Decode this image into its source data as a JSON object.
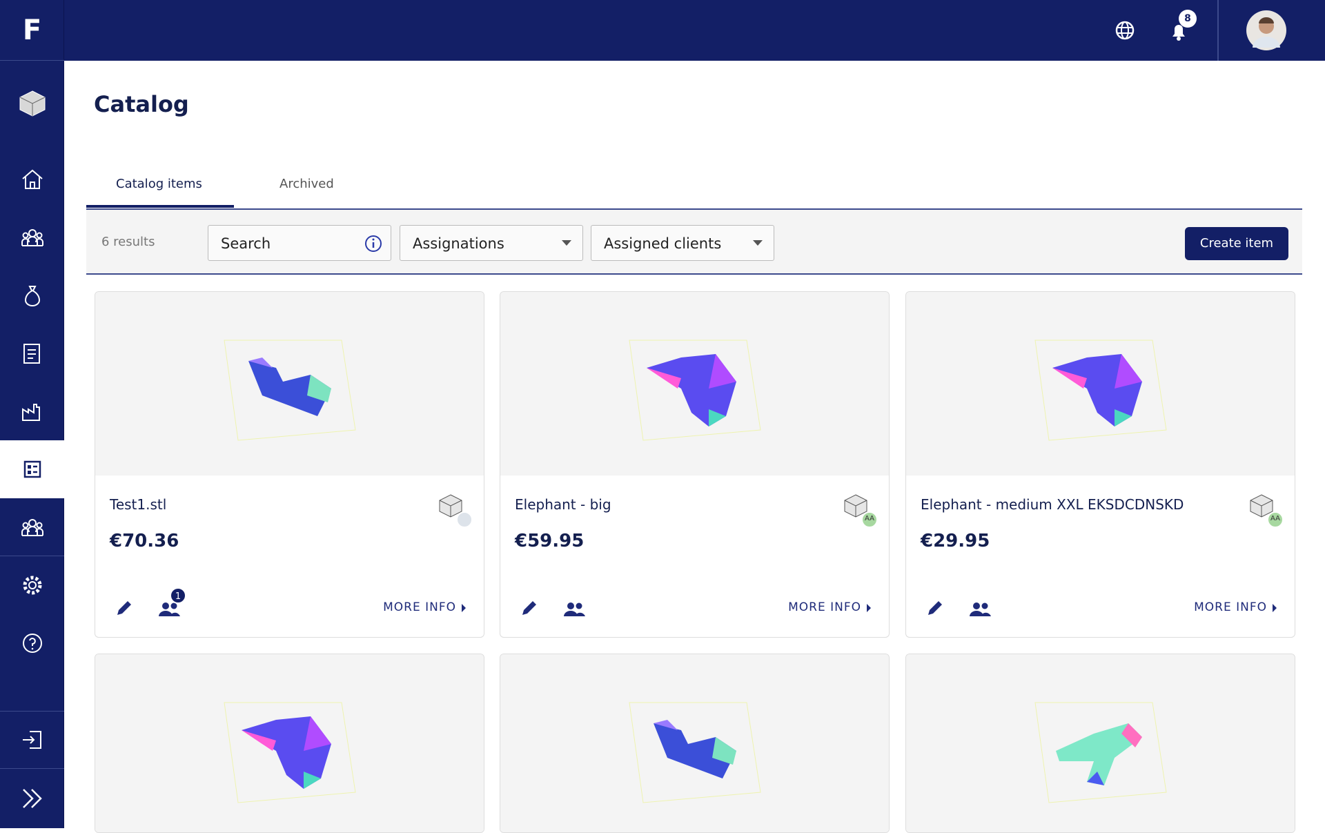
{
  "header": {
    "logo": "F",
    "notification_count": "8"
  },
  "page": {
    "title": "Catalog"
  },
  "tabs": [
    "Catalog items",
    "Archived"
  ],
  "filters": {
    "results": "6 results",
    "search": "Search",
    "assignations": "Assignations",
    "assigned_clients": "Assigned clients",
    "create": "Create item"
  },
  "cards": [
    {
      "name": "Test1.stl",
      "price": "€70.36",
      "assigned_count": "1",
      "more": "MORE INFO"
    },
    {
      "name": "Elephant - big",
      "price": "€59.95",
      "owner": "AA",
      "more": "MORE INFO"
    },
    {
      "name": "Elephant - medium XXL EKSDCDNSKD",
      "price": "€29.95",
      "owner": "AA",
      "more": "MORE INFO"
    }
  ]
}
